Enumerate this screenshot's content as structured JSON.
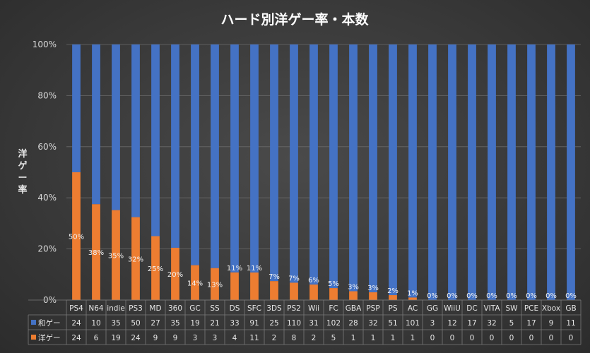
{
  "chart_data": {
    "type": "bar",
    "stacked": "percent",
    "title": "ハード別洋ゲー率・本数",
    "ylabel": "洋ゲー率",
    "ylim": [
      0,
      100
    ],
    "yticks": [
      "0%",
      "20%",
      "40%",
      "60%",
      "80%",
      "100%"
    ],
    "grid": true,
    "categories": [
      "PS4",
      "N64",
      "indie",
      "PS3",
      "MD",
      "360",
      "GC",
      "SS",
      "DS",
      "SFC",
      "3DS",
      "PS2",
      "Wii",
      "FC",
      "GBA",
      "PSP",
      "PS",
      "AC",
      "GG",
      "WiiU",
      "DC",
      "VITA",
      "SW",
      "PCE",
      "Xbox",
      "GB"
    ],
    "series": [
      {
        "name": "和ゲー",
        "color": "#4472c4",
        "values": [
          24,
          10,
          35,
          50,
          27,
          35,
          19,
          21,
          33,
          91,
          25,
          110,
          31,
          102,
          28,
          32,
          51,
          101,
          3,
          12,
          17,
          32,
          5,
          17,
          9,
          11
        ]
      },
      {
        "name": "洋ゲー",
        "color": "#ed7d31",
        "values": [
          24,
          6,
          19,
          24,
          9,
          9,
          3,
          3,
          4,
          11,
          2,
          8,
          2,
          5,
          1,
          1,
          1,
          1,
          0,
          0,
          0,
          0,
          0,
          0,
          0,
          0
        ]
      }
    ],
    "data_labels": [
      "50%",
      "38%",
      "35%",
      "32%",
      "25%",
      "20%",
      "14%",
      "13%",
      "11%",
      "11%",
      "7%",
      "7%",
      "6%",
      "5%",
      "3%",
      "3%",
      "2%",
      "1%",
      "0%",
      "0%",
      "0%",
      "0%",
      "0%",
      "0%",
      "0%",
      "0%"
    ]
  }
}
